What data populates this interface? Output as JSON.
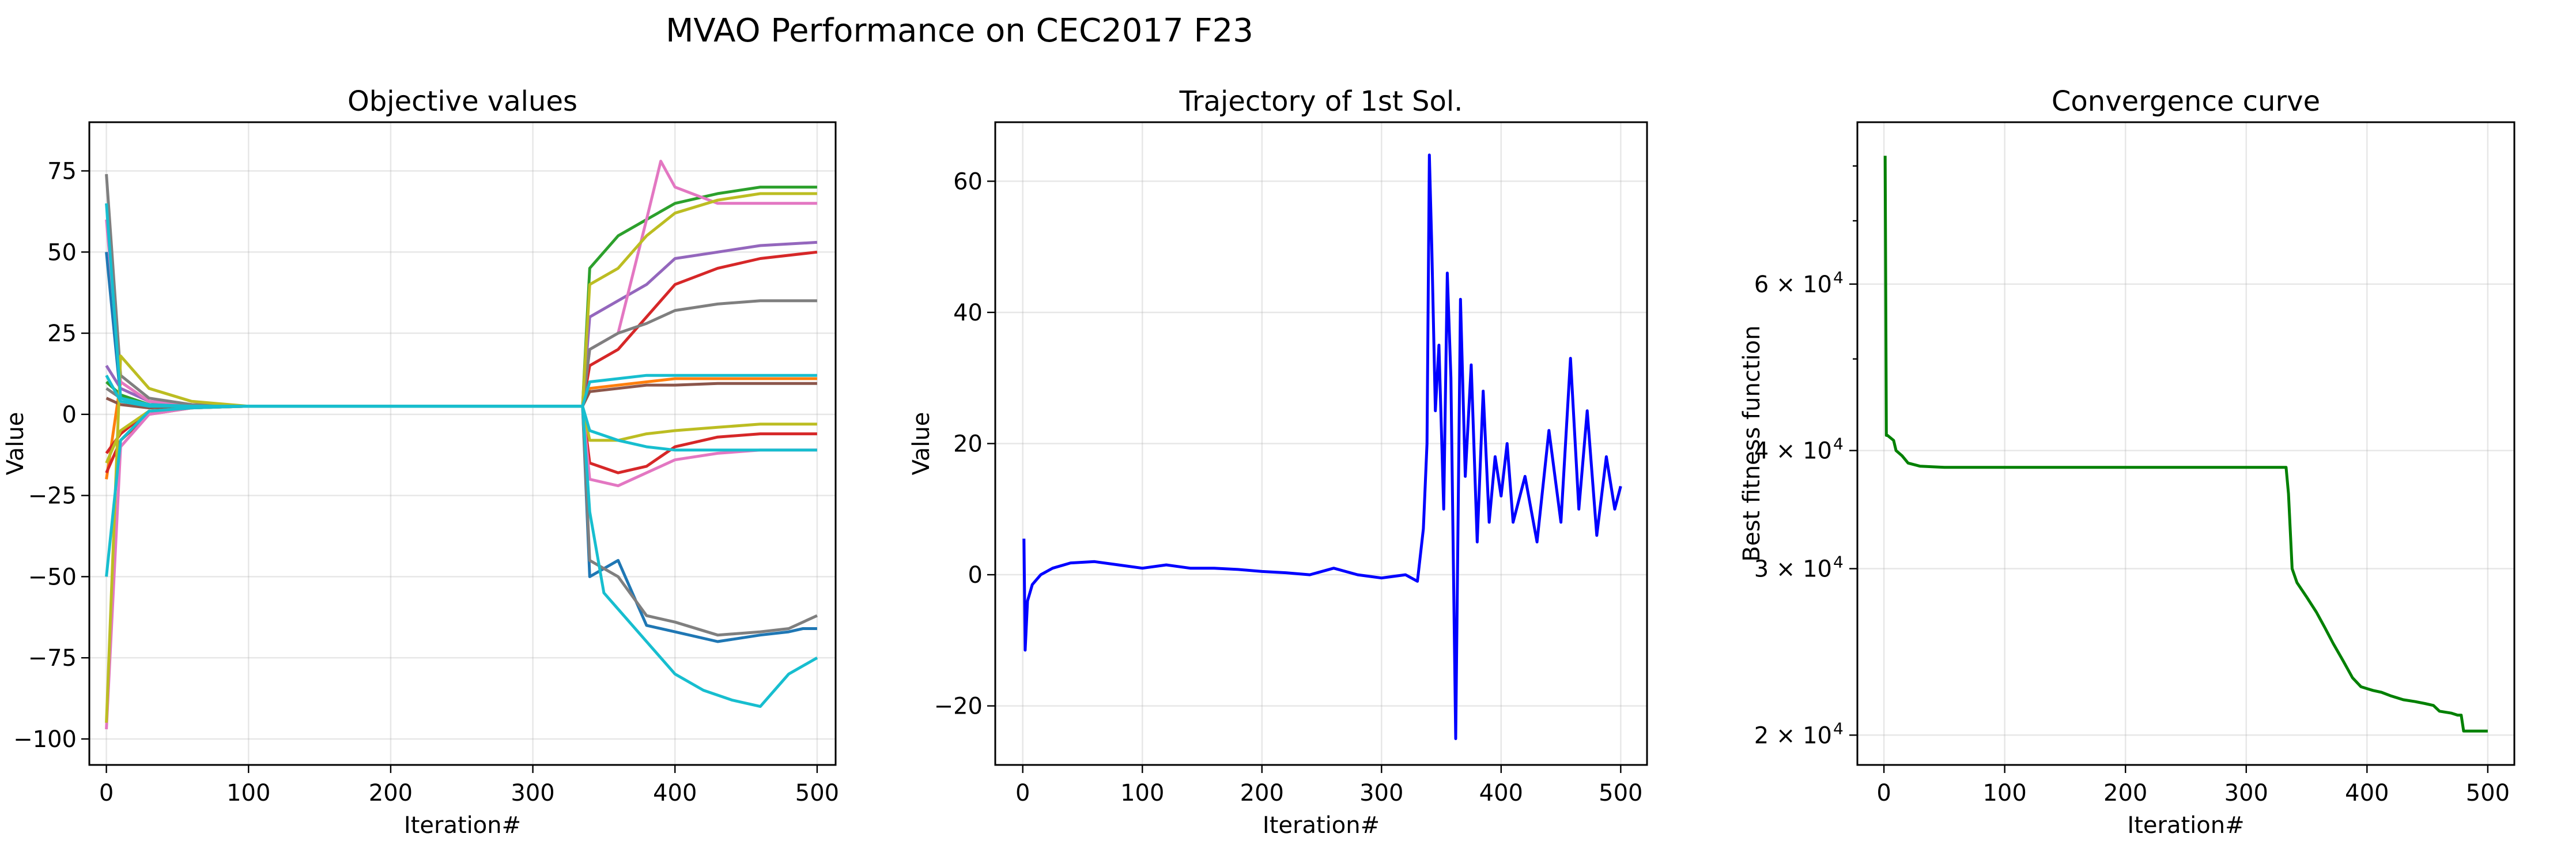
{
  "figure": {
    "suptitle": "MVAO Performance on CEC2017 F23"
  },
  "chart_data": [
    {
      "type": "line",
      "title": "Objective values",
      "xlabel": "Iteration#",
      "ylabel": "Value",
      "xlim": [
        -12,
        513
      ],
      "ylim": [
        -108,
        90
      ],
      "xticks": [
        0,
        100,
        200,
        300,
        400,
        500
      ],
      "xtick_labels": [
        "0",
        "100",
        "200",
        "300",
        "400",
        "500"
      ],
      "yticks": [
        75,
        50,
        25,
        0,
        -25,
        -50,
        -75,
        -100
      ],
      "ytick_labels": [
        "75",
        "50",
        "25",
        "0",
        "−25",
        "−50",
        "−75",
        "−100"
      ],
      "grid": true,
      "legend": "none",
      "series": [
        {
          "color": "#1f77b4",
          "x": [
            0,
            10,
            30,
            60,
            100,
            200,
            300,
            335,
            340,
            360,
            380,
            400,
            430,
            460,
            480,
            490,
            500
          ],
          "values": [
            50,
            5,
            3,
            2.5,
            2.5,
            2.5,
            2.5,
            2.5,
            -50,
            -45,
            -65,
            -67,
            -70,
            -68,
            -67,
            -66,
            -66
          ]
        },
        {
          "color": "#ff7f0e",
          "x": [
            0,
            10,
            30,
            60,
            100,
            200,
            300,
            335,
            340,
            360,
            380,
            400,
            430,
            460,
            500
          ],
          "values": [
            -20,
            10,
            4,
            2.5,
            2.5,
            2.5,
            2.5,
            2.5,
            8,
            9,
            10,
            11,
            11,
            11,
            11
          ]
        },
        {
          "color": "#2ca02c",
          "x": [
            0,
            10,
            30,
            60,
            100,
            200,
            300,
            335,
            340,
            360,
            380,
            400,
            430,
            460,
            500
          ],
          "values": [
            10,
            6,
            3,
            2.5,
            2.5,
            2.5,
            2.5,
            2.5,
            45,
            55,
            60,
            65,
            68,
            70,
            70
          ]
        },
        {
          "color": "#d62728",
          "x": [
            0,
            10,
            30,
            60,
            100,
            200,
            300,
            335,
            340,
            360,
            380,
            400,
            430,
            460,
            500
          ],
          "values": [
            -18,
            -8,
            0,
            2,
            2.5,
            2.5,
            2.5,
            2.5,
            15,
            20,
            30,
            40,
            45,
            48,
            50
          ]
        },
        {
          "color": "#d62728",
          "x": [
            0,
            10,
            30,
            60,
            100,
            200,
            300,
            335,
            340,
            360,
            380,
            400,
            430,
            460,
            500
          ],
          "values": [
            -12,
            -6,
            1,
            2,
            2.5,
            2.5,
            2.5,
            2.5,
            -15,
            -18,
            -16,
            -10,
            -7,
            -6,
            -6
          ]
        },
        {
          "color": "#9467bd",
          "x": [
            0,
            10,
            30,
            60,
            100,
            200,
            300,
            335,
            340,
            360,
            380,
            400,
            430,
            460,
            500
          ],
          "values": [
            15,
            8,
            4,
            2.5,
            2.5,
            2.5,
            2.5,
            2.5,
            30,
            35,
            40,
            48,
            50,
            52,
            53
          ]
        },
        {
          "color": "#8c564b",
          "x": [
            0,
            10,
            30,
            60,
            100,
            200,
            300,
            335,
            340,
            360,
            380,
            400,
            430,
            460,
            500
          ],
          "values": [
            5,
            3,
            2,
            2.5,
            2.5,
            2.5,
            2.5,
            2.5,
            7,
            8,
            9,
            9,
            9.5,
            9.5,
            9.5
          ]
        },
        {
          "color": "#e377c2",
          "x": [
            0,
            10,
            30,
            60,
            100,
            200,
            300,
            335,
            340,
            360,
            380,
            390,
            400,
            430,
            460,
            500
          ],
          "values": [
            60,
            10,
            4,
            3,
            2.5,
            2.5,
            2.5,
            2.5,
            20,
            25,
            60,
            78,
            70,
            65,
            65,
            65
          ]
        },
        {
          "color": "#e377c2",
          "x": [
            0,
            10,
            30,
            60,
            100,
            200,
            300,
            335,
            340,
            360,
            380,
            400,
            430,
            460,
            500
          ],
          "values": [
            -97,
            -10,
            0,
            2,
            2.5,
            2.5,
            2.5,
            2.5,
            -20,
            -22,
            -18,
            -14,
            -12,
            -11,
            -11
          ]
        },
        {
          "color": "#7f7f7f",
          "x": [
            0,
            10,
            30,
            60,
            100,
            200,
            300,
            335,
            340,
            360,
            380,
            400,
            430,
            460,
            480,
            500
          ],
          "values": [
            74,
            12,
            5,
            3,
            2.5,
            2.5,
            2.5,
            2.5,
            -45,
            -50,
            -62,
            -64,
            -68,
            -67,
            -66,
            -62
          ]
        },
        {
          "color": "#7f7f7f",
          "x": [
            0,
            10,
            30,
            60,
            100,
            200,
            300,
            335,
            340,
            360,
            380,
            400,
            430,
            460,
            500
          ],
          "values": [
            8,
            5,
            3,
            2.5,
            2.5,
            2.5,
            2.5,
            2.5,
            20,
            25,
            28,
            32,
            34,
            35,
            35
          ]
        },
        {
          "color": "#bcbd22",
          "x": [
            0,
            10,
            30,
            60,
            100,
            200,
            300,
            335,
            340,
            360,
            380,
            400,
            430,
            460,
            500
          ],
          "values": [
            -95,
            18,
            8,
            4,
            2.5,
            2.5,
            2.5,
            2.5,
            40,
            45,
            55,
            62,
            66,
            68,
            68
          ]
        },
        {
          "color": "#bcbd22",
          "x": [
            0,
            10,
            30,
            60,
            100,
            200,
            300,
            335,
            340,
            360,
            380,
            400,
            430,
            460,
            500
          ],
          "values": [
            -15,
            -5,
            1,
            2,
            2.5,
            2.5,
            2.5,
            2.5,
            -8,
            -8,
            -6,
            -5,
            -4,
            -3,
            -3
          ]
        },
        {
          "color": "#17becf",
          "x": [
            0,
            10,
            30,
            60,
            100,
            200,
            300,
            335,
            340,
            350,
            360,
            380,
            400,
            420,
            440,
            460,
            480,
            500
          ],
          "values": [
            65,
            5,
            3,
            2.5,
            2.5,
            2.5,
            2.5,
            2.5,
            -30,
            -55,
            -60,
            -70,
            -80,
            -85,
            -88,
            -90,
            -80,
            -75
          ]
        },
        {
          "color": "#17becf",
          "x": [
            0,
            10,
            30,
            60,
            100,
            200,
            300,
            335,
            340,
            360,
            380,
            400,
            430,
            460,
            500
          ],
          "values": [
            -50,
            -8,
            1,
            2,
            2.5,
            2.5,
            2.5,
            2.5,
            10,
            11,
            12,
            12,
            12,
            12,
            12
          ]
        },
        {
          "color": "#17becf",
          "x": [
            0,
            10,
            30,
            60,
            100,
            200,
            300,
            335,
            340,
            360,
            380,
            400,
            430,
            460,
            500
          ],
          "values": [
            12,
            4,
            2.5,
            2.5,
            2.5,
            2.5,
            2.5,
            2.5,
            -5,
            -8,
            -10,
            -11,
            -11,
            -11,
            -11
          ]
        }
      ]
    },
    {
      "type": "line",
      "title": "Trajectory of 1st Sol.",
      "xlabel": "Iteration#",
      "ylabel": "Value",
      "xlim": [
        -23,
        522
      ],
      "ylim": [
        -29,
        69
      ],
      "xticks": [
        0,
        100,
        200,
        300,
        400,
        500
      ],
      "xtick_labels": [
        "0",
        "100",
        "200",
        "300",
        "400",
        "500"
      ],
      "yticks": [
        60,
        40,
        20,
        0,
        -20
      ],
      "ytick_labels": [
        "60",
        "40",
        "20",
        "0",
        "−20"
      ],
      "grid": true,
      "legend": "none",
      "series": [
        {
          "color": "#0000ff",
          "x": [
            1,
            2,
            4,
            8,
            15,
            25,
            40,
            60,
            80,
            100,
            120,
            140,
            160,
            180,
            200,
            220,
            240,
            260,
            280,
            300,
            320,
            330,
            335,
            338,
            340,
            342,
            345,
            348,
            352,
            355,
            358,
            362,
            366,
            370,
            375,
            380,
            385,
            390,
            395,
            400,
            405,
            410,
            420,
            430,
            440,
            450,
            458,
            465,
            472,
            480,
            488,
            495,
            500
          ],
          "values": [
            5.5,
            -11.5,
            -4,
            -1.5,
            0,
            1,
            1.8,
            2,
            1.5,
            1,
            1.5,
            1,
            1,
            0.8,
            0.5,
            0.3,
            0,
            1,
            0,
            -0.5,
            0,
            -1,
            7,
            20,
            64,
            50,
            25,
            35,
            10,
            46,
            30,
            -25,
            42,
            15,
            32,
            5,
            28,
            8,
            18,
            12,
            20,
            8,
            15,
            5,
            22,
            8,
            33,
            10,
            25,
            6,
            18,
            10,
            13.5
          ]
        }
      ]
    },
    {
      "type": "line",
      "title": "Convergence curve",
      "xlabel": "Iteration#",
      "ylabel": "Best fitness function",
      "log_y": true,
      "xlim": [
        -22,
        522
      ],
      "ylim": [
        18600,
        89000
      ],
      "xticks": [
        0,
        100,
        200,
        300,
        400,
        500
      ],
      "xtick_labels": [
        "0",
        "100",
        "200",
        "300",
        "400",
        "500"
      ],
      "yticks": [
        60000,
        40000,
        30000,
        20000
      ],
      "ytick_labels": [
        "6 × 10",
        "4 × 10",
        "3 × 10",
        "2 × 10"
      ],
      "ytick_exponent": "4",
      "grid": true,
      "legend": "none",
      "series": [
        {
          "color": "#008000",
          "x": [
            1,
            2,
            3,
            8,
            10,
            15,
            20,
            30,
            50,
            100,
            200,
            300,
            333,
            335,
            338,
            342,
            350,
            358,
            365,
            372,
            380,
            388,
            395,
            400,
            405,
            412,
            420,
            430,
            440,
            448,
            455,
            460,
            470,
            475,
            478,
            480,
            490,
            500
          ],
          "values": [
            82000,
            41500,
            41500,
            41000,
            40000,
            39500,
            38800,
            38500,
            38400,
            38400,
            38400,
            38400,
            38400,
            36000,
            30000,
            29000,
            28000,
            27000,
            26000,
            25000,
            24000,
            23000,
            22500,
            22400,
            22300,
            22200,
            22000,
            21800,
            21700,
            21600,
            21500,
            21200,
            21100,
            21000,
            21000,
            20200,
            20200,
            20200
          ]
        }
      ]
    }
  ]
}
